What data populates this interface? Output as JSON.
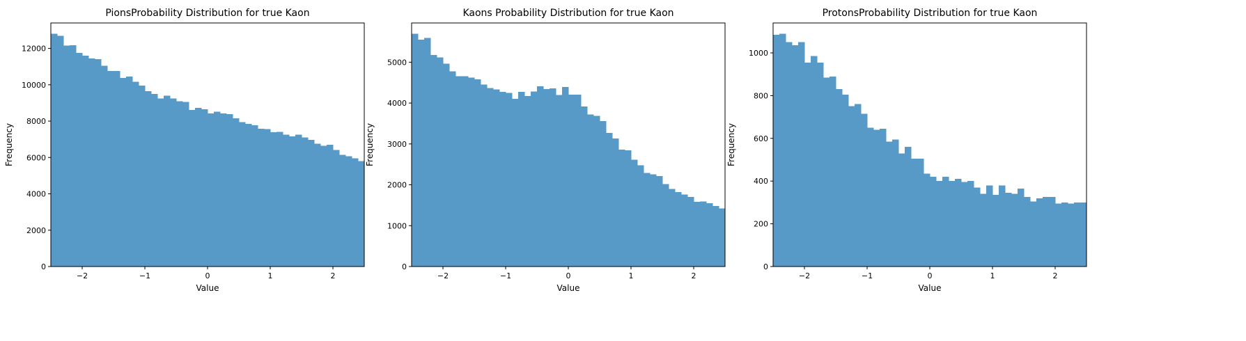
{
  "chart_data": [
    {
      "type": "bar",
      "title": "PionsProbability Distribution for true  Kaon",
      "xlabel": "Value",
      "ylabel": "Frequency",
      "xlim": [
        -2.5,
        2.5
      ],
      "ylim": [
        0,
        13400
      ],
      "bins": 50,
      "xticks": [
        -2,
        -1,
        0,
        1,
        2
      ],
      "xtick_labels": [
        "−2",
        "−1",
        "0",
        "1",
        "2"
      ],
      "yticks": [
        0,
        2000,
        4000,
        6000,
        8000,
        10000,
        12000
      ],
      "ytick_labels": [
        "0",
        "2000",
        "4000",
        "6000",
        "8000",
        "10000",
        "12000"
      ],
      "values": [
        12800,
        12700,
        12150,
        12180,
        11750,
        11600,
        11450,
        11400,
        11050,
        10750,
        10750,
        10370,
        10450,
        10170,
        9950,
        9650,
        9500,
        9250,
        9400,
        9250,
        9100,
        9050,
        8620,
        8730,
        8650,
        8430,
        8510,
        8420,
        8380,
        8150,
        7950,
        7850,
        7780,
        7580,
        7570,
        7380,
        7400,
        7250,
        7150,
        7250,
        7100,
        6960,
        6750,
        6650,
        6700,
        6420,
        6150,
        6070,
        5950,
        5800
      ]
    },
    {
      "type": "bar",
      "title": "Kaons Probability Distribution for  true Kaon",
      "xlabel": "Value",
      "ylabel": "Frequency",
      "xlim": [
        -2.5,
        2.5
      ],
      "ylim": [
        0,
        5960
      ],
      "bins": 50,
      "xticks": [
        -2,
        -1,
        0,
        1,
        2
      ],
      "xtick_labels": [
        "−2",
        "−1",
        "0",
        "1",
        "2"
      ],
      "yticks": [
        0,
        1000,
        2000,
        3000,
        4000,
        5000
      ],
      "ytick_labels": [
        "0",
        "1000",
        "2000",
        "3000",
        "4000",
        "5000"
      ],
      "values": [
        5700,
        5550,
        5590,
        5180,
        5120,
        4960,
        4780,
        4660,
        4660,
        4620,
        4580,
        4450,
        4370,
        4330,
        4270,
        4250,
        4100,
        4270,
        4170,
        4280,
        4410,
        4340,
        4360,
        4200,
        4390,
        4210,
        4210,
        3920,
        3720,
        3690,
        3560,
        3270,
        3130,
        2860,
        2840,
        2610,
        2480,
        2290,
        2260,
        2210,
        2020,
        1900,
        1820,
        1760,
        1700,
        1580,
        1590,
        1550,
        1480,
        1420
      ]
    },
    {
      "type": "bar",
      "title": "ProtonsProbability Distribution for  true Kaon",
      "xlabel": "Value",
      "ylabel": "Frequency",
      "xlim": [
        -2.5,
        2.5
      ],
      "ylim": [
        0,
        1140
      ],
      "bins": 50,
      "xticks": [
        -2,
        -1,
        0,
        1,
        2
      ],
      "xtick_labels": [
        "−2",
        "−1",
        "0",
        "1",
        "2"
      ],
      "yticks": [
        0,
        200,
        400,
        600,
        800,
        1000
      ],
      "ytick_labels": [
        "0",
        "200",
        "400",
        "600",
        "800",
        "1000"
      ],
      "values": [
        1085,
        1090,
        1050,
        1035,
        1050,
        955,
        985,
        955,
        885,
        890,
        830,
        805,
        750,
        760,
        715,
        650,
        640,
        645,
        585,
        595,
        530,
        560,
        505,
        505,
        435,
        420,
        400,
        420,
        400,
        410,
        395,
        400,
        370,
        340,
        380,
        335,
        380,
        345,
        340,
        365,
        325,
        305,
        320,
        325,
        325,
        295,
        300,
        295,
        300,
        300
      ]
    }
  ],
  "colors": {
    "bar": "#5799c7",
    "axis": "#000000",
    "background": "#ffffff"
  }
}
